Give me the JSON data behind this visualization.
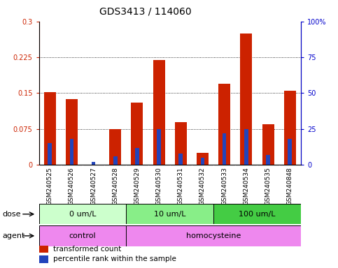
{
  "title": "GDS3413 / 114060",
  "samples": [
    "GSM240525",
    "GSM240526",
    "GSM240527",
    "GSM240528",
    "GSM240529",
    "GSM240530",
    "GSM240531",
    "GSM240532",
    "GSM240533",
    "GSM240534",
    "GSM240535",
    "GSM240848"
  ],
  "red_values": [
    0.152,
    0.138,
    0.0,
    0.075,
    0.13,
    0.22,
    0.09,
    0.025,
    0.17,
    0.275,
    0.085,
    0.155
  ],
  "blue_pct": [
    15,
    18,
    2,
    6,
    12,
    25,
    8,
    5,
    22,
    25,
    7,
    18
  ],
  "ylim_left": [
    0,
    0.3
  ],
  "ylim_right": [
    0,
    100
  ],
  "yticks_left": [
    0,
    0.075,
    0.15,
    0.225,
    0.3
  ],
  "yticks_right": [
    0,
    25,
    50,
    75,
    100
  ],
  "ytick_labels_left": [
    "0",
    "0.075",
    "0.15",
    "0.225",
    "0.3"
  ],
  "ytick_labels_right": [
    "0",
    "25",
    "50",
    "75",
    "100%"
  ],
  "dose_groups": [
    {
      "label": "0 um/L",
      "start": 0,
      "end": 3,
      "color": "#ccffcc"
    },
    {
      "label": "10 um/L",
      "start": 4,
      "end": 7,
      "color": "#88ee88"
    },
    {
      "label": "100 um/L",
      "start": 8,
      "end": 11,
      "color": "#44cc44"
    }
  ],
  "agent_groups": [
    {
      "label": "control",
      "start": 0,
      "end": 3,
      "color": "#ee88ee"
    },
    {
      "label": "homocysteine",
      "start": 4,
      "end": 11,
      "color": "#ee88ee"
    }
  ],
  "dose_label": "dose",
  "agent_label": "agent",
  "legend": [
    {
      "label": "transformed count",
      "color": "#cc2200"
    },
    {
      "label": "percentile rank within the sample",
      "color": "#2244bb"
    }
  ],
  "bar_color_red": "#cc2200",
  "bar_color_blue": "#2244bb",
  "red_bar_width": 0.55,
  "blue_bar_width": 0.18,
  "title_fontsize": 10,
  "tick_fontsize": 7,
  "label_fontsize": 8,
  "xtick_fontsize": 6.5,
  "legend_fontsize": 7.5
}
